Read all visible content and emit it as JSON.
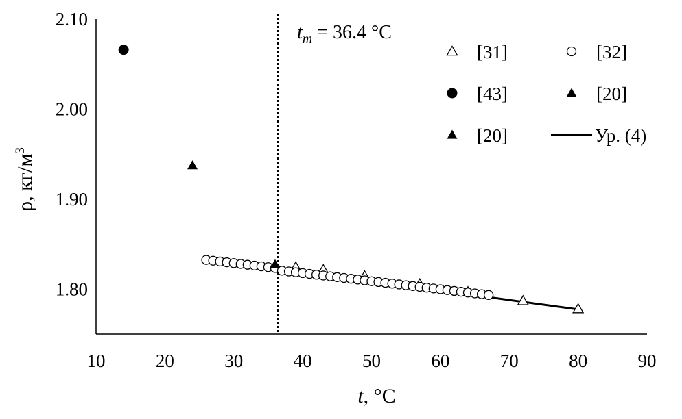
{
  "chart_data": {
    "type": "scatter",
    "title": "",
    "xlabel": {
      "var": "t",
      "rest": ", °C"
    },
    "ylabel": {
      "base": "ρ, кг/м",
      "sup": "3"
    },
    "xlim": [
      10,
      90
    ],
    "ylim": [
      1.75,
      2.1
    ],
    "x_ticks": [
      "10",
      "20",
      "30",
      "40",
      "50",
      "60",
      "70",
      "80",
      "90"
    ],
    "y_ticks": [
      "1.80",
      "1.90",
      "2.00",
      "2.10"
    ],
    "grid": false,
    "legend_position": "top-right",
    "annotation": {
      "var": "t",
      "sub": "m",
      "rest": " = 36.4 °C",
      "x": 36.4
    },
    "series": [
      {
        "name": "[31]",
        "marker": "triangle-open",
        "points": [
          [
            39,
            1.8245
          ],
          [
            43,
            1.8215
          ],
          [
            49,
            1.8145
          ],
          [
            57,
            1.8057
          ],
          [
            64,
            1.797
          ],
          [
            72,
            1.787
          ],
          [
            80,
            1.778
          ]
        ]
      },
      {
        "name": "[32]",
        "marker": "circle-open",
        "points": [
          [
            26,
            1.8325
          ],
          [
            27,
            1.8316
          ],
          [
            28,
            1.8307
          ],
          [
            29,
            1.8298
          ],
          [
            30,
            1.8289
          ],
          [
            31,
            1.828
          ],
          [
            32,
            1.8271
          ],
          [
            33,
            1.8262
          ],
          [
            34,
            1.8253
          ],
          [
            35,
            1.8244
          ],
          [
            36,
            1.8235
          ],
          [
            37,
            1.8205
          ],
          [
            38,
            1.8196
          ],
          [
            39,
            1.8187
          ],
          [
            40,
            1.8178
          ],
          [
            41,
            1.8169
          ],
          [
            42,
            1.816
          ],
          [
            43,
            1.8151
          ],
          [
            44,
            1.8142
          ],
          [
            45,
            1.8133
          ],
          [
            46,
            1.8124
          ],
          [
            47,
            1.8115
          ],
          [
            48,
            1.8106
          ],
          [
            49,
            1.8097
          ],
          [
            50,
            1.8088
          ],
          [
            51,
            1.8079
          ],
          [
            52,
            1.807
          ],
          [
            53,
            1.8061
          ],
          [
            54,
            1.8052
          ],
          [
            55,
            1.8043
          ],
          [
            56,
            1.8034
          ],
          [
            57,
            1.8025
          ],
          [
            58,
            1.8016
          ],
          [
            59,
            1.8007
          ],
          [
            60,
            1.7998
          ],
          [
            61,
            1.7989
          ],
          [
            62,
            1.798
          ],
          [
            63,
            1.7971
          ],
          [
            64,
            1.7962
          ],
          [
            65,
            1.7953
          ],
          [
            66,
            1.7944
          ],
          [
            67,
            1.7935
          ]
        ]
      },
      {
        "name": "[43]",
        "marker": "circle-filled",
        "points": [
          [
            14,
            2.066
          ]
        ]
      },
      {
        "name": "[20]",
        "marker": "triangle-filled",
        "points": [
          [
            24,
            1.9375
          ]
        ]
      },
      {
        "name": "[20]",
        "marker": "triangle-filled",
        "points": [
          [
            36,
            1.8275
          ]
        ]
      },
      {
        "name": "Ур. (4)",
        "marker": "line",
        "points": [
          [
            36.4,
            1.8232
          ],
          [
            80,
            1.7775
          ]
        ]
      }
    ]
  }
}
